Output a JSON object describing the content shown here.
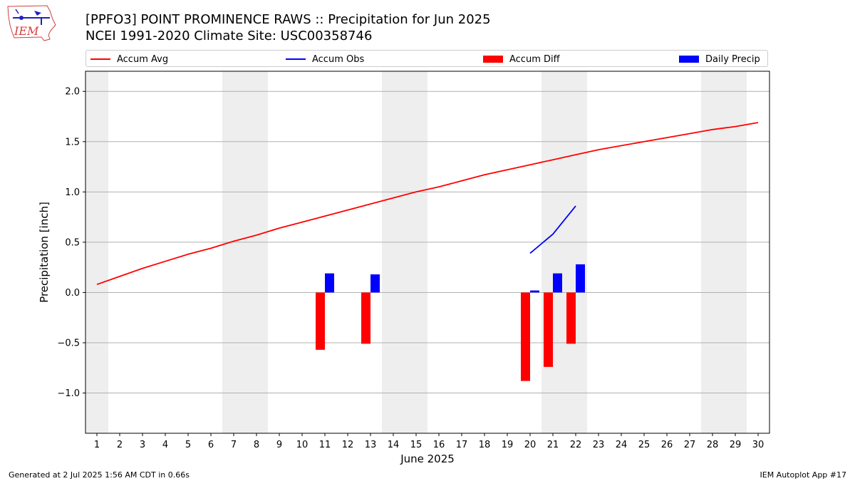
{
  "title_line1": "[PPFO3] POINT PROMINENCE RAWS :: Precipitation for Jun 2025",
  "title_line2": "NCEI 1991-2020 Climate Site: USC00358746",
  "logo_text": "IEM",
  "footer_left": "Generated at 2 Jul 2025 1:56 AM CDT in 0.66s",
  "footer_right": "IEM Autoplot App #17",
  "colors": {
    "avg": "#ff0000",
    "obs": "#0000ff",
    "diff": "#ff0000",
    "daily": "#0000ff",
    "weekend": "#eeeeee",
    "grid": "#b0b0b0"
  },
  "legend": [
    {
      "label": "Accum Avg",
      "kind": "line",
      "color": "#ff0000"
    },
    {
      "label": "Accum Obs",
      "kind": "line",
      "color": "#0000ff"
    },
    {
      "label": "Accum Diff",
      "kind": "box",
      "color": "#ff0000"
    },
    {
      "label": "Daily Precip",
      "kind": "box",
      "color": "#0000ff"
    }
  ],
  "chart_data": {
    "type": "bar",
    "xlabel": "June 2025",
    "ylabel": "Precipitation [inch]",
    "xlim": [
      0.5,
      30.5
    ],
    "ylim": [
      -1.4,
      2.2
    ],
    "yticks": [
      -1.0,
      -0.5,
      0.0,
      0.5,
      1.0,
      1.5,
      2.0
    ],
    "ytick_labels": [
      "−1.0",
      "−0.5",
      "0.0",
      "0.5",
      "1.0",
      "1.5",
      "2.0"
    ],
    "x": [
      1,
      2,
      3,
      4,
      5,
      6,
      7,
      8,
      9,
      10,
      11,
      12,
      13,
      14,
      15,
      16,
      17,
      18,
      19,
      20,
      21,
      22,
      23,
      24,
      25,
      26,
      27,
      28,
      29,
      30
    ],
    "x_labels": [
      "1",
      "2",
      "3",
      "4",
      "5",
      "6",
      "7",
      "8",
      "9",
      "10",
      "11",
      "12",
      "13",
      "14",
      "15",
      "16",
      "17",
      "18",
      "19",
      "20",
      "21",
      "22",
      "23",
      "24",
      "25",
      "26",
      "27",
      "28",
      "29",
      "30"
    ],
    "weekend_spans": [
      [
        0.5,
        1.5
      ],
      [
        6.5,
        8.5
      ],
      [
        13.5,
        15.5
      ],
      [
        20.5,
        22.5
      ],
      [
        27.5,
        29.5
      ]
    ],
    "grid": true,
    "series": [
      {
        "name": "Accum Avg",
        "kind": "line",
        "x": [
          1,
          2,
          3,
          4,
          5,
          6,
          7,
          8,
          9,
          10,
          11,
          12,
          13,
          14,
          15,
          16,
          17,
          18,
          19,
          20,
          21,
          22,
          23,
          24,
          25,
          26,
          27,
          28,
          29,
          30
        ],
        "values": [
          0.08,
          0.16,
          0.24,
          0.31,
          0.38,
          0.44,
          0.51,
          0.57,
          0.64,
          0.7,
          0.76,
          0.82,
          0.88,
          0.94,
          1.0,
          1.05,
          1.11,
          1.17,
          1.22,
          1.27,
          1.32,
          1.37,
          1.42,
          1.46,
          1.5,
          1.54,
          1.58,
          1.62,
          1.65,
          1.69
        ]
      },
      {
        "name": "Accum Obs",
        "kind": "line",
        "x": [
          20,
          21,
          22
        ],
        "values": [
          0.39,
          0.58,
          0.86
        ]
      },
      {
        "name": "Accum Diff",
        "kind": "bar",
        "x": [
          11,
          13,
          20,
          21,
          22
        ],
        "values": [
          -0.57,
          -0.51,
          -0.88,
          -0.74,
          -0.51
        ]
      },
      {
        "name": "Daily Precip",
        "kind": "bar",
        "x": [
          11,
          13,
          20,
          21,
          22
        ],
        "values": [
          0.19,
          0.18,
          0.02,
          0.19,
          0.28
        ]
      }
    ]
  }
}
